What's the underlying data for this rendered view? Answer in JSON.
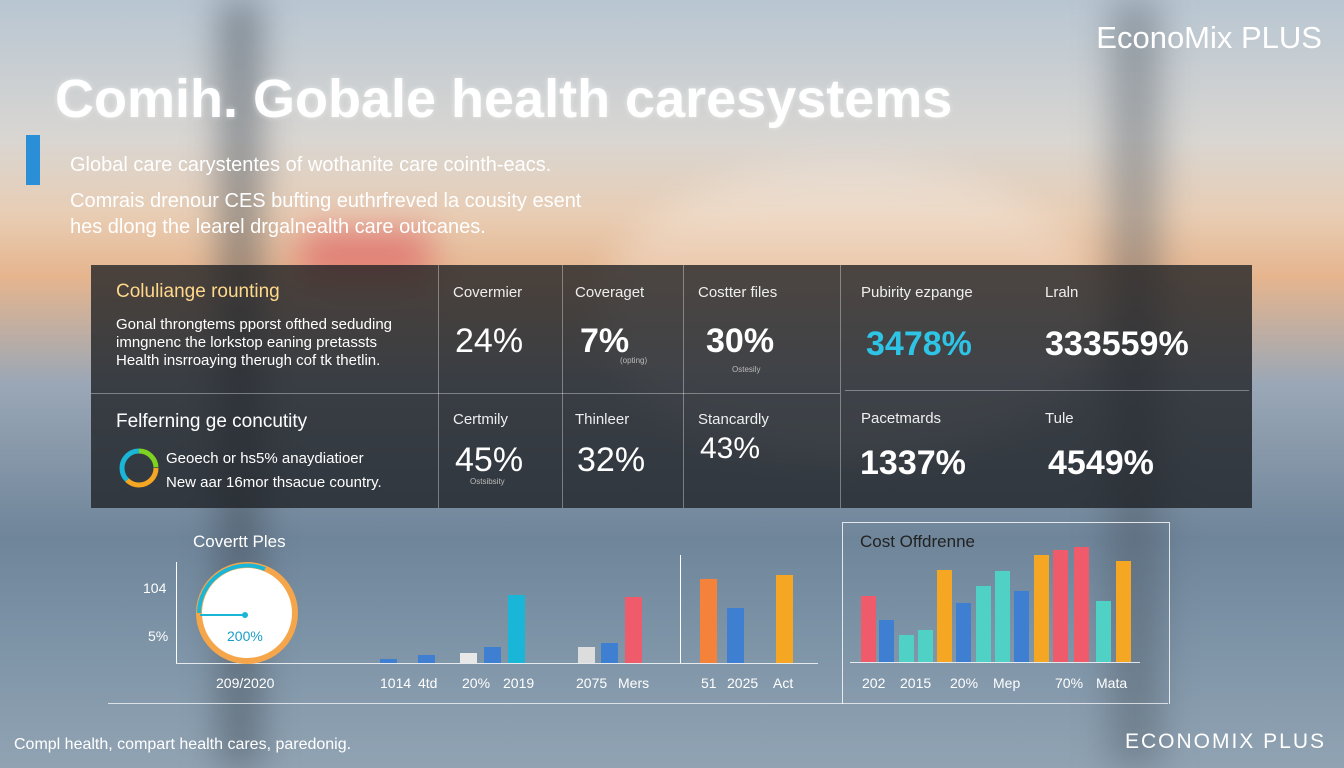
{
  "brand": "EconoMix PLUS",
  "title": "Comih. Gobale health caresystems",
  "subtitle": [
    "Global care carystentes of wothanite care cointh-eacs.",
    "Comrais drenour CES bufting euthrfreved la cousity esent",
    "hes dlong the learel drgalnealth care outcanes."
  ],
  "panel": {
    "rows": [
      {
        "heading": "Coluliange rounting",
        "lines": [
          "Gonal throngtems pporst ofthed seduding",
          "imngnenc the lorkstop eaning pretassts",
          "Health insrroaying therugh cof tk thetlin."
        ],
        "cells": [
          {
            "label": "Covermier",
            "value": "24%"
          },
          {
            "label": "Coveraget",
            "value": "7%",
            "note": "(opting)"
          },
          {
            "label": "Costter files",
            "value": "30%",
            "note": "Ostesily"
          },
          {
            "label": "Pubirity ezpange",
            "value": "3478%"
          },
          {
            "label": "Lraln",
            "value": "333559%"
          }
        ]
      },
      {
        "heading": "Felferning ge concutity",
        "lines": [
          "Geoech or hs5% anaydiatioer",
          "New aar 16mor thsacue country."
        ],
        "cells": [
          {
            "label": "Certmily",
            "value": "45%",
            "note": "Ostsibsity"
          },
          {
            "label": "Thinleer",
            "value": "32%"
          },
          {
            "label": "Stancardly",
            "value": "43%"
          },
          {
            "label": "Pacetmards",
            "value": "1337%"
          },
          {
            "label": "Tule",
            "value": "4549%"
          }
        ]
      }
    ]
  },
  "left_chart": {
    "title": "Covertt Ples",
    "y_labels": [
      "104",
      "5%"
    ],
    "gauge": "200%",
    "x_label": "209/2020",
    "bar_labels": [
      "1014",
      "4td",
      "20%",
      "2019",
      "2075",
      "Mers",
      "51",
      "2025",
      "Act"
    ]
  },
  "right_chart": {
    "title": "Cost Offdrenne",
    "bar_labels": [
      "202",
      "2015",
      "20%",
      "Mep",
      "70%",
      "Mata"
    ]
  },
  "footer": {
    "left": "Compl health, compart health cares, paredonig.",
    "right": "ECONOMIX PLUS"
  }
}
